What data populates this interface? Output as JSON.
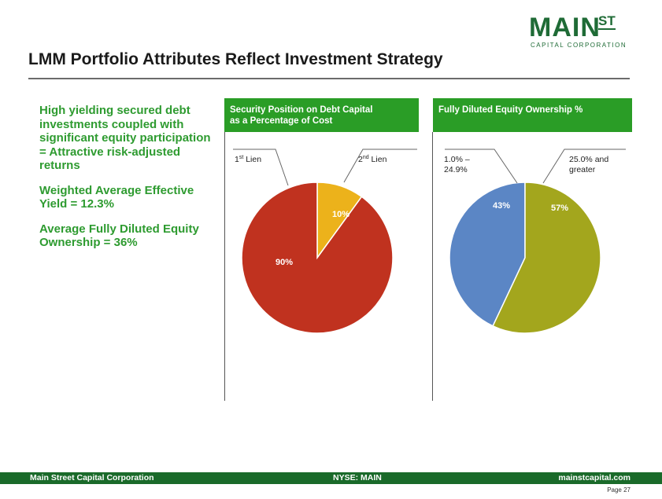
{
  "logo": {
    "main": "MAIN",
    "st": "ST",
    "sub": "CAPITAL CORPORATION"
  },
  "title": "LMM Portfolio Attributes Reflect Investment Strategy",
  "bullets": [
    "High yielding secured debt investments coupled with significant equity participation = Attractive risk-adjusted returns",
    "Weighted Average Effective Yield = 12.3%",
    "Average Fully Diluted Equity Ownership = 36%"
  ],
  "panels": {
    "left": {
      "header_line1": "Security Position on Debt Capital",
      "header_line2": "as a Percentage of Cost"
    },
    "right": {
      "header_line1": "Fully Diluted Equity Ownership %"
    }
  },
  "colors": {
    "green_header": "#2a9d26",
    "red": "#c0321f",
    "yellow": "#ecb21b",
    "blue": "#5b86c5",
    "olive": "#a3a61d"
  },
  "chart_data": [
    {
      "type": "pie",
      "title": "Security Position on Debt Capital as a Percentage of Cost",
      "categories": [
        "1st Lien",
        "2nd Lien"
      ],
      "values": [
        90,
        10
      ],
      "data_labels": [
        "90%",
        "10%"
      ],
      "label_parts": [
        {
          "base": "1",
          "sup": "st",
          "rest": " Lien"
        },
        {
          "base": "2",
          "sup": "nd",
          "rest": " Lien"
        }
      ],
      "colors": [
        "#c0321f",
        "#ecb21b"
      ]
    },
    {
      "type": "pie",
      "title": "Fully Diluted Equity Ownership %",
      "categories": [
        "1.0% – 24.9%",
        "25.0% and greater"
      ],
      "label_lines": [
        [
          "1.0% –",
          "24.9%"
        ],
        [
          "25.0% and",
          "greater"
        ]
      ],
      "values": [
        43,
        57
      ],
      "data_labels": [
        "43%",
        "57%"
      ],
      "colors": [
        "#5b86c5",
        "#a3a61d"
      ]
    }
  ],
  "footer": {
    "company": "Main Street Capital Corporation",
    "ticker": "NYSE: MAIN",
    "website": "mainstcapital.com",
    "page": "Page  27"
  }
}
